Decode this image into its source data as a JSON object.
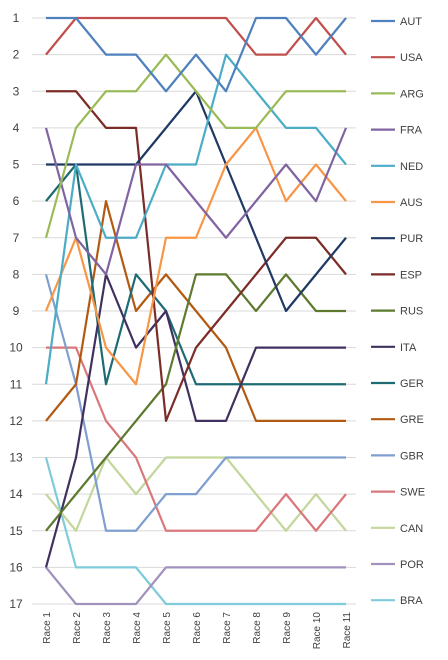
{
  "chart_data": {
    "type": "line",
    "title": "",
    "xlabel": "",
    "ylabel": "",
    "y_reversed": true,
    "ylim": [
      1,
      17
    ],
    "yticks": [
      "1",
      "2",
      "3",
      "4",
      "5",
      "6",
      "7",
      "8",
      "9",
      "10",
      "11",
      "12",
      "13",
      "14",
      "15",
      "16",
      "17"
    ],
    "categories": [
      "Race 1",
      "Race 2",
      "Race 3",
      "Race 4",
      "Race 5",
      "Race 6",
      "Race 7",
      "Race 8",
      "Race 9",
      "Race 10",
      "Race 11"
    ],
    "grid": "horizontal",
    "legend_position": "right",
    "series": [
      {
        "name": "AUT",
        "color": "#4e81bd",
        "values": [
          1,
          1,
          2,
          2,
          3,
          2,
          3,
          1,
          1,
          2,
          1
        ]
      },
      {
        "name": "USA",
        "color": "#c0504d",
        "values": [
          2,
          1,
          1,
          1,
          1,
          1,
          1,
          2,
          2,
          1,
          2
        ]
      },
      {
        "name": "ARG",
        "color": "#9bbb59",
        "values": [
          7,
          4,
          3,
          3,
          2,
          3,
          4,
          4,
          3,
          3,
          3
        ]
      },
      {
        "name": "FRA",
        "color": "#8064a2",
        "values": [
          4,
          7,
          8,
          5,
          5,
          6,
          7,
          6,
          5,
          6,
          4
        ]
      },
      {
        "name": "NED",
        "color": "#4bacc6",
        "values": [
          11,
          5,
          7,
          7,
          5,
          5,
          2,
          3,
          4,
          4,
          5
        ]
      },
      {
        "name": "AUS",
        "color": "#f79646",
        "values": [
          9,
          7,
          10,
          11,
          7,
          7,
          5,
          4,
          6,
          5,
          6
        ]
      },
      {
        "name": "PUR",
        "color": "#1f3864",
        "values": [
          5,
          5,
          5,
          5,
          4,
          3,
          5,
          7,
          9,
          8,
          7
        ]
      },
      {
        "name": "ESP",
        "color": "#7b2c27",
        "values": [
          3,
          3,
          4,
          4,
          12,
          10,
          9,
          8,
          7,
          7,
          8
        ]
      },
      {
        "name": "RUS",
        "color": "#5e7a2e",
        "values": [
          15,
          14,
          13,
          12,
          11,
          8,
          8,
          9,
          8,
          9,
          9
        ]
      },
      {
        "name": "ITA",
        "color": "#403060",
        "values": [
          16,
          13,
          8,
          10,
          9,
          12,
          12,
          10,
          10,
          10,
          10
        ]
      },
      {
        "name": "GER",
        "color": "#1f6b73",
        "values": [
          6,
          5,
          11,
          8,
          9,
          11,
          11,
          11,
          11,
          11,
          11
        ]
      },
      {
        "name": "GRE",
        "color": "#b35a12",
        "values": [
          12,
          11,
          6,
          9,
          8,
          9,
          10,
          12,
          12,
          12,
          12
        ]
      },
      {
        "name": "GBR",
        "color": "#7f9fcf",
        "values": [
          8,
          11,
          15,
          15,
          14,
          14,
          13,
          13,
          13,
          13,
          13
        ]
      },
      {
        "name": "SWE",
        "color": "#d9777a",
        "values": [
          10,
          10,
          12,
          13,
          15,
          15,
          15,
          15,
          14,
          15,
          14
        ]
      },
      {
        "name": "CAN",
        "color": "#c3d69b",
        "values": [
          14,
          15,
          13,
          14,
          13,
          13,
          13,
          14,
          15,
          14,
          15
        ]
      },
      {
        "name": "POR",
        "color": "#a192bd",
        "values": [
          16,
          17,
          17,
          17,
          16,
          16,
          16,
          16,
          16,
          16,
          16
        ]
      },
      {
        "name": "BRA",
        "color": "#7fcbdc",
        "values": [
          13,
          16,
          16,
          16,
          17,
          17,
          17,
          17,
          17,
          17,
          17
        ]
      }
    ]
  }
}
